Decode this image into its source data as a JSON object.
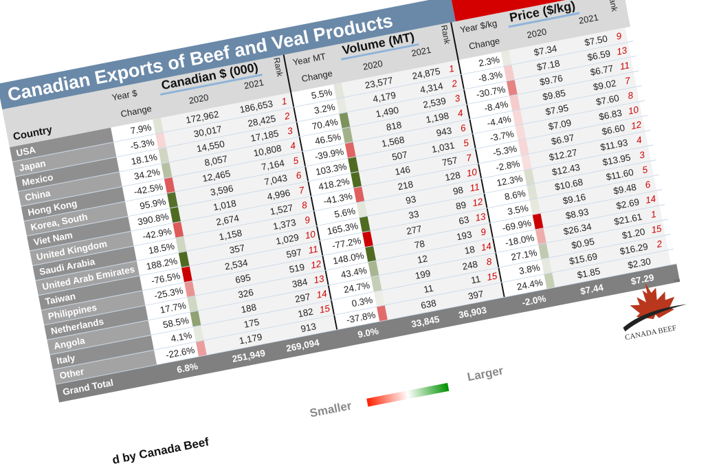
{
  "title": "Canadian Exports of Beef and Veal Products",
  "close_icon": "×",
  "headers": {
    "country": "Country",
    "rank": "Rank",
    "sections": [
      {
        "title": "Canadian $ (000)",
        "change_line1": "Year $",
        "change_line2": "Change",
        "y1": "2020",
        "y2": "2021"
      },
      {
        "title": "Volume (MT)",
        "change_line1": "Year MT",
        "change_line2": "Change",
        "y1": "2020",
        "y2": "2021"
      },
      {
        "title": "Price ($/kg)",
        "change_line1": "Year $/kg",
        "change_line2": "Change",
        "y1": "2020",
        "y2": "2021"
      }
    ]
  },
  "rows": [
    {
      "country": "USA",
      "d": [
        "7.9%",
        "172,962",
        "186,653",
        "1"
      ],
      "m": [
        "5.5%",
        "23,577",
        "24,875",
        "1"
      ],
      "p": [
        "2.3%",
        "$7.34",
        "$7.50",
        "9"
      ]
    },
    {
      "country": "Japan",
      "d": [
        "-5.3%",
        "30,017",
        "28,425",
        "2"
      ],
      "m": [
        "3.2%",
        "4,179",
        "4,314",
        "2"
      ],
      "p": [
        "-8.3%",
        "$7.18",
        "$6.59",
        "13"
      ]
    },
    {
      "country": "Mexico",
      "d": [
        "18.1%",
        "14,550",
        "17,185",
        "3"
      ],
      "m": [
        "70.4%",
        "1,490",
        "2,539",
        "3"
      ],
      "p": [
        "-30.7%",
        "$9.76",
        "$6.77",
        "11"
      ]
    },
    {
      "country": "China",
      "d": [
        "34.2%",
        "8,057",
        "10,808",
        "4"
      ],
      "m": [
        "46.5%",
        "818",
        "1,198",
        "4"
      ],
      "p": [
        "-8.4%",
        "$9.85",
        "$9.02",
        "7"
      ]
    },
    {
      "country": "Hong Kong",
      "d": [
        "-42.5%",
        "12,465",
        "7,164",
        "5"
      ],
      "m": [
        "-39.9%",
        "1,568",
        "943",
        "6"
      ],
      "p": [
        "-4.4%",
        "$7.95",
        "$7.60",
        "8"
      ]
    },
    {
      "country": "Korea, South",
      "d": [
        "95.9%",
        "3,596",
        "7,043",
        "6"
      ],
      "m": [
        "103.3%",
        "507",
        "1,031",
        "5"
      ],
      "p": [
        "-3.7%",
        "$7.09",
        "$6.83",
        "10"
      ]
    },
    {
      "country": "Viet Nam",
      "d": [
        "390.8%",
        "1,018",
        "4,996",
        "7"
      ],
      "m": [
        "418.2%",
        "146",
        "757",
        "7"
      ],
      "p": [
        "-5.3%",
        "$6.97",
        "$6.60",
        "12"
      ]
    },
    {
      "country": "United Kingdom",
      "d": [
        "-42.9%",
        "2,674",
        "1,527",
        "8"
      ],
      "m": [
        "-41.3%",
        "218",
        "128",
        "10"
      ],
      "p": [
        "-2.8%",
        "$12.27",
        "$11.93",
        "4"
      ]
    },
    {
      "country": "Saudi Arabia",
      "d": [
        "18.5%",
        "1,158",
        "1,373",
        "9"
      ],
      "m": [
        "5.6%",
        "93",
        "98",
        "11"
      ],
      "p": [
        "12.3%",
        "$12.43",
        "$13.95",
        "3"
      ]
    },
    {
      "country": "United Arab Emirates",
      "d": [
        "188.2%",
        "357",
        "1,029",
        "10"
      ],
      "m": [
        "165.3%",
        "33",
        "89",
        "12"
      ],
      "p": [
        "8.6%",
        "$10.68",
        "$11.60",
        "5"
      ]
    },
    {
      "country": "Taiwan",
      "d": [
        "-76.5%",
        "2,534",
        "597",
        "11"
      ],
      "m": [
        "-77.2%",
        "277",
        "63",
        "13"
      ],
      "p": [
        "3.5%",
        "$9.16",
        "$9.48",
        "6"
      ]
    },
    {
      "country": "Philippines",
      "d": [
        "-25.3%",
        "695",
        "519",
        "12"
      ],
      "m": [
        "148.0%",
        "78",
        "193",
        "9"
      ],
      "p": [
        "-69.9%",
        "$8.93",
        "$2.69",
        "14"
      ]
    },
    {
      "country": "Netherlands",
      "d": [
        "17.7%",
        "326",
        "384",
        "13"
      ],
      "m": [
        "43.4%",
        "12",
        "18",
        "14"
      ],
      "p": [
        "-18.0%",
        "$26.34",
        "$21.61",
        "1"
      ]
    },
    {
      "country": "Angola",
      "d": [
        "58.5%",
        "188",
        "297",
        "14"
      ],
      "m": [
        "24.7%",
        "199",
        "248",
        "8"
      ],
      "p": [
        "27.1%",
        "$0.95",
        "$1.20",
        "15"
      ]
    },
    {
      "country": "Italy",
      "d": [
        "4.1%",
        "175",
        "182",
        "15"
      ],
      "m": [
        "0.3%",
        "11",
        "11",
        "15"
      ],
      "p": [
        "3.8%",
        "$15.69",
        "$16.29",
        "2"
      ]
    },
    {
      "country": "Other",
      "d": [
        "-22.6%",
        "1,179",
        "913",
        ""
      ],
      "m": [
        "-37.8%",
        "638",
        "397",
        ""
      ],
      "p": [
        "24.4%",
        "$1.85",
        "$2.30",
        ""
      ]
    }
  ],
  "grand_total": {
    "label": "Grand Total",
    "d": [
      "6.8%",
      "251,949",
      "269,094",
      ""
    ],
    "m": [
      "9.0%",
      "33,845",
      "36,903",
      ""
    ],
    "p": [
      "-2.0%",
      "$7.44",
      "$7.29",
      ""
    ]
  },
  "legend": {
    "smaller": "Smaller",
    "larger": "Larger",
    "color_low": "#ff2000",
    "color_high": "#009000"
  },
  "colors": {
    "title_bar": "#6a89a8",
    "price_header": "#d40000",
    "positive_bar": "#4f6b22",
    "negative_bar": "#cc0000",
    "rank": "#d00000"
  },
  "logo": {
    "text": "CANADA BEEF",
    "tm": "TM"
  },
  "credit": "d by Canada Beef"
}
